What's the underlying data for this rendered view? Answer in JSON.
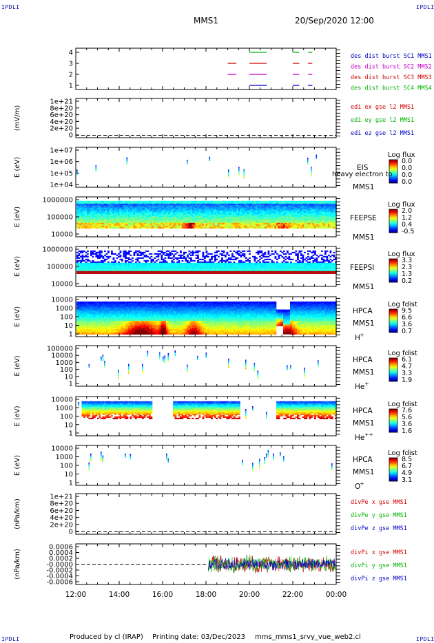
{
  "corners": {
    "top_left": "IPDLI",
    "top_right": "IPDLI",
    "bottom_left": "IPDLI",
    "bottom_right": "IPDLI"
  },
  "header": {
    "title": "MMS1",
    "datetime": "20/Sep/2020 12:00"
  },
  "footer": {
    "producer": "Produced by cl (IRAP)",
    "printing_date": "Printing date: 03/Dec/2023",
    "script": "mms_mms1_srvy_vue_web2.cl"
  },
  "colors": {
    "mms1": "#0000c8",
    "mms2": "#c800c8",
    "mms3": "#d00000",
    "mms4": "#00b400"
  },
  "chart_data": [
    {
      "type": "line",
      "id": "burst",
      "yticks": [
        "1",
        "2",
        "3",
        "4"
      ],
      "legend": [
        {
          "label": "des dist burst SC1 MMS1",
          "color": "#0000c8"
        },
        {
          "label": "des dist burst SC2 MMS2",
          "color": "#c800c8"
        },
        {
          "label": "des dist burst SC3 MMS3",
          "color": "#d00000"
        },
        {
          "label": "des dist burst SC4 MMS4",
          "color": "#00b400"
        }
      ],
      "intervals": {
        "mms1": [
          [
            20.0,
            20.8
          ],
          [
            22.0,
            22.3
          ],
          [
            22.7,
            22.9
          ]
        ],
        "mms2": [
          [
            19.0,
            19.4
          ],
          [
            20.0,
            20.8
          ],
          [
            22.0,
            22.3
          ],
          [
            22.7,
            22.9
          ]
        ],
        "mms3": [
          [
            19.0,
            19.4
          ],
          [
            20.0,
            20.8
          ],
          [
            22.0,
            22.3
          ],
          [
            22.7,
            22.9
          ]
        ],
        "mms4": [
          [
            20.0,
            20.8
          ],
          [
            22.0,
            22.3
          ],
          [
            22.7,
            22.9
          ]
        ]
      }
    },
    {
      "type": "line",
      "id": "edi",
      "ylabel": "(mV/m)",
      "yticks": [
        "1e+21",
        "8e+20",
        "6e+20",
        "4e+20",
        "2e+20",
        "0"
      ],
      "legend": [
        {
          "label": "edi ex gse l2 MMS1",
          "color": "#d00000"
        },
        {
          "label": "edi ey gse l2 MMS1",
          "color": "#00b400"
        },
        {
          "label": "edi ez gse l2 MMS1",
          "color": "#0000c8"
        }
      ]
    },
    {
      "type": "heatmap",
      "id": "eis",
      "ylabel": "E (eV)",
      "yticks": [
        "1e+07",
        "1e+06",
        "1e+05",
        "1e+04"
      ],
      "instrument": "EIS",
      "sc": "MMS1",
      "note": "heavy electron to",
      "colorbar": {
        "title": "Log flux",
        "ticks": [
          "0.0",
          "0.0",
          "0.0",
          "0.0"
        ]
      }
    },
    {
      "type": "heatmap",
      "id": "feepse",
      "ylabel": "E (eV)",
      "yticks": [
        "1000000",
        "100000",
        "10000"
      ],
      "instrument": "FEEPSE",
      "sc": "MMS1",
      "colorbar": {
        "title": "Log flux",
        "ticks": [
          "2.0",
          "1.2",
          "0.4",
          "-0.5"
        ]
      }
    },
    {
      "type": "heatmap",
      "id": "feepsi",
      "ylabel": "E (eV)",
      "yticks": [
        "1000000",
        "100000",
        "10000"
      ],
      "instrument": "FEEPSI",
      "sc": "MMS1",
      "colorbar": {
        "title": "Log flux",
        "ticks": [
          "3.3",
          "2.3",
          "1.3",
          "0.2"
        ]
      }
    },
    {
      "type": "heatmap",
      "id": "hpca_h",
      "ylabel": "E (eV)",
      "yticks": [
        "10000",
        "1000",
        "100",
        "10",
        "1"
      ],
      "instrument": "HPCA",
      "sc": "MMS1",
      "ion": "H",
      "charge": "+",
      "colorbar": {
        "title": "Log fdist",
        "ticks": [
          "9.5",
          "6.6",
          "3.6",
          "0.7"
        ]
      }
    },
    {
      "type": "heatmap",
      "id": "hpca_he1",
      "ylabel": "E (eV)",
      "yticks": [
        "100000",
        "10000",
        "1000",
        "100",
        "10",
        "1"
      ],
      "instrument": "HPCA",
      "sc": "MMS1",
      "ion": "He",
      "charge": "+",
      "colorbar": {
        "title": "Log fdist",
        "ticks": [
          "6.1",
          "4.7",
          "3.3",
          "1.9"
        ]
      }
    },
    {
      "type": "heatmap",
      "id": "hpca_he2",
      "ylabel": "E (eV)",
      "yticks": [
        "10000",
        "1000",
        "100",
        "10",
        "1"
      ],
      "instrument": "HPCA",
      "sc": "MMS1",
      "ion": "He",
      "charge": "++",
      "colorbar": {
        "title": "Log fdist",
        "ticks": [
          "7.6",
          "5.6",
          "3.6",
          "1.6"
        ]
      }
    },
    {
      "type": "heatmap",
      "id": "hpca_o",
      "ylabel": "E (eV)",
      "yticks": [
        "10000",
        "1000",
        "100",
        "10",
        "1"
      ],
      "instrument": "HPCA",
      "sc": "MMS1",
      "ion": "O",
      "charge": "+",
      "colorbar": {
        "title": "Log fdist",
        "ticks": [
          "8.5",
          "6.7",
          "4.9",
          "3.1"
        ]
      }
    },
    {
      "type": "line",
      "id": "divpe",
      "ylabel": "(nPa/km)",
      "yticks": [
        "1e+21",
        "8e+20",
        "6e+20",
        "4e+20",
        "2e+20",
        "0"
      ],
      "legend": [
        {
          "label": "divPe x gse MMS1",
          "color": "#d00000"
        },
        {
          "label": "divPe y gse MMS1",
          "color": "#00b400"
        },
        {
          "label": "divPe z gse MMS1",
          "color": "#0000c8"
        }
      ]
    },
    {
      "type": "line",
      "id": "divpi",
      "ylabel": "(nPa/km)",
      "yticks": [
        "0.0006",
        "0.0004",
        "0.0002",
        "-0.0000",
        "-0.0002",
        "-0.0004",
        "-0.0006"
      ],
      "ylim": [
        -0.0006,
        0.0006
      ],
      "data_start": 18.1,
      "legend": [
        {
          "label": "divPi x gse MMS1",
          "color": "#d00000"
        },
        {
          "label": "divPi y gse MMS1",
          "color": "#00b400"
        },
        {
          "label": "divPi z gse MMS1",
          "color": "#0000c8"
        }
      ]
    }
  ],
  "x_axis": {
    "ticks": [
      "12:00",
      "14:00",
      "16:00",
      "18:00",
      "20:00",
      "22:00",
      "00:00"
    ],
    "range_hours": [
      12,
      24
    ]
  }
}
